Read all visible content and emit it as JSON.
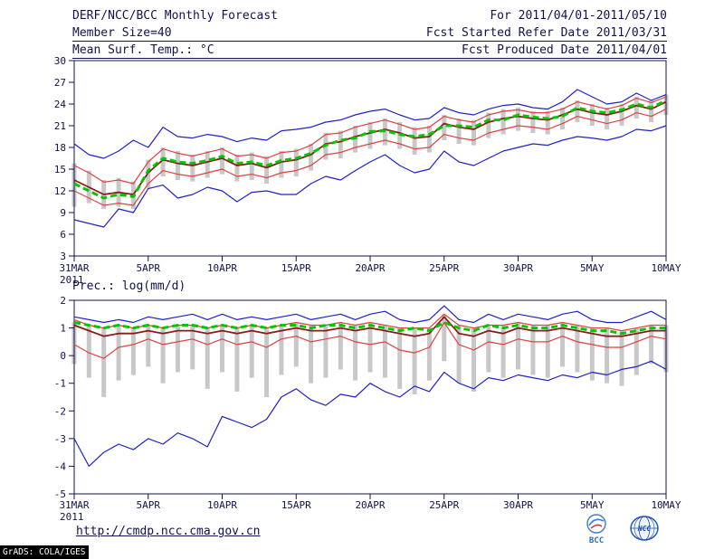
{
  "header": {
    "title": "DERF/NCC/BCC Monthly Forecast",
    "member_size": "Member Size=40",
    "panel1_title": "Mean Surf. Temp.: °C",
    "for_range": "For 2011/04/01-2011/05/10",
    "fcst_started": "Fcst Started Refer Date 2011/03/31",
    "fcst_produced": "Fcst Produced Date 2011/04/01"
  },
  "footer": {
    "url": "http://cmdp.ncc.cma.gov.cn",
    "grads_credit": "GrADS: COLA/IGES",
    "logos": [
      {
        "name": "bcc-logo",
        "label": "BCC"
      },
      {
        "name": "ncc-logo",
        "label": "NCC"
      }
    ]
  },
  "colors": {
    "text": "#11114f",
    "bar": "#c8c8c8",
    "max_min_line": "#2020cc",
    "spread_line": "#e04040",
    "mean_line": "#8b1a1a",
    "median_line": "#00c800",
    "background": "#ffffff"
  },
  "chart_data": [
    {
      "id": "temperature",
      "type": "line",
      "title": "Mean Surf. Temp.: °C",
      "xlabel": "",
      "ylabel": "°C",
      "ylim": [
        3,
        30
      ],
      "yticks": [
        30,
        27,
        24,
        21,
        18,
        15,
        12,
        9,
        6,
        3
      ],
      "grid": false,
      "legend": "none",
      "n_days": 41,
      "x_year_label": "2011",
      "xtick_labels": [
        "31MAR",
        "5APR",
        "10APR",
        "15APR",
        "20APR",
        "25APR",
        "30APR",
        "5MAY",
        "10MAY"
      ],
      "xtick_index": [
        0,
        5,
        10,
        15,
        20,
        25,
        30,
        35,
        40
      ],
      "bars": {
        "name": "temp-ensemble-spread-bars",
        "color": "#c8c8c8",
        "high": [
          15.8,
          14.8,
          13.5,
          13.8,
          13.3,
          16.3,
          18.0,
          17.5,
          17.0,
          17.5,
          18.0,
          17.0,
          17.3,
          16.8,
          17.5,
          17.8,
          18.5,
          20.0,
          20.3,
          21.0,
          21.5,
          22.0,
          21.5,
          20.8,
          21.0,
          22.5,
          22.0,
          21.8,
          22.8,
          23.3,
          23.5,
          23.0,
          23.0,
          23.5,
          24.5,
          24.0,
          23.5,
          24.0,
          25.0,
          24.5,
          25.3
        ],
        "low": [
          9.8,
          10.3,
          9.5,
          9.8,
          9.5,
          12.3,
          14.0,
          13.5,
          13.3,
          13.8,
          14.3,
          13.3,
          13.5,
          13.0,
          13.8,
          14.0,
          14.8,
          16.3,
          16.5,
          17.3,
          17.8,
          18.3,
          17.8,
          17.0,
          17.3,
          19.0,
          18.5,
          18.3,
          19.3,
          19.8,
          20.3,
          20.0,
          19.8,
          20.5,
          21.5,
          21.0,
          20.5,
          21.0,
          22.0,
          21.5,
          22.5
        ]
      },
      "series": [
        {
          "name": "ensemble-max",
          "color": "#2020cc",
          "width": 1.2,
          "values": [
            18.5,
            17.0,
            16.5,
            17.5,
            19.0,
            18.0,
            20.8,
            19.5,
            19.3,
            19.8,
            19.5,
            18.8,
            19.3,
            19.0,
            20.3,
            20.5,
            20.8,
            21.5,
            21.8,
            22.5,
            23.0,
            23.3,
            22.5,
            21.8,
            22.0,
            23.5,
            22.8,
            22.5,
            23.3,
            23.8,
            24.0,
            23.5,
            23.3,
            24.3,
            26.0,
            25.0,
            24.0,
            24.3,
            25.5,
            24.5,
            25.3
          ]
        },
        {
          "name": "ensemble-min",
          "color": "#2020cc",
          "width": 1.2,
          "values": [
            8.0,
            7.5,
            7.0,
            9.5,
            9.0,
            12.3,
            12.8,
            11.0,
            11.5,
            12.5,
            12.0,
            10.5,
            11.8,
            12.0,
            11.5,
            11.5,
            13.0,
            14.0,
            13.5,
            14.8,
            16.0,
            17.0,
            15.5,
            14.5,
            15.0,
            17.5,
            16.0,
            15.5,
            16.5,
            17.5,
            18.0,
            18.5,
            18.3,
            19.0,
            19.5,
            19.3,
            19.0,
            19.5,
            20.5,
            20.3,
            21.0
          ]
        },
        {
          "name": "spread-upper",
          "color": "#e04040",
          "width": 1.2,
          "values": [
            15.5,
            14.5,
            13.2,
            13.5,
            13.0,
            16.0,
            17.8,
            17.2,
            16.8,
            17.3,
            17.8,
            16.8,
            17.0,
            16.5,
            17.3,
            17.5,
            18.3,
            19.8,
            20.0,
            20.8,
            21.3,
            21.8,
            21.2,
            20.5,
            20.8,
            22.3,
            21.8,
            21.5,
            22.5,
            23.0,
            23.2,
            22.8,
            22.8,
            23.3,
            24.3,
            23.8,
            23.3,
            23.8,
            24.8,
            24.2,
            25.0
          ]
        },
        {
          "name": "spread-lower",
          "color": "#e04040",
          "width": 1.2,
          "values": [
            12.0,
            11.0,
            10.0,
            10.3,
            10.0,
            13.0,
            14.8,
            14.3,
            14.0,
            14.5,
            15.0,
            14.0,
            14.3,
            13.8,
            14.5,
            14.8,
            15.5,
            17.0,
            17.3,
            18.0,
            18.5,
            19.0,
            18.5,
            17.8,
            18.0,
            19.8,
            19.3,
            19.0,
            20.0,
            20.5,
            21.0,
            20.8,
            20.5,
            21.3,
            22.3,
            21.8,
            21.3,
            21.8,
            22.8,
            22.3,
            23.3
          ]
        },
        {
          "name": "ensemble-mean",
          "color": "#8b1a1a",
          "width": 1.8,
          "values": [
            13.5,
            12.5,
            11.5,
            11.8,
            11.5,
            14.5,
            16.3,
            15.8,
            15.5,
            16.0,
            16.5,
            15.5,
            15.8,
            15.2,
            16.0,
            16.3,
            17.0,
            18.5,
            18.8,
            19.5,
            20.0,
            20.5,
            20.0,
            19.3,
            19.5,
            21.3,
            20.8,
            20.5,
            21.5,
            22.0,
            22.3,
            22.0,
            21.8,
            22.5,
            23.3,
            22.8,
            22.5,
            23.0,
            23.8,
            23.3,
            24.3
          ]
        },
        {
          "name": "ensemble-median",
          "color": "#00c800",
          "width": 3,
          "dash": "7 4",
          "values": [
            13.0,
            12.0,
            11.0,
            11.5,
            11.2,
            14.8,
            16.5,
            16.0,
            15.8,
            16.2,
            16.8,
            15.8,
            16.0,
            15.5,
            16.2,
            16.5,
            17.2,
            18.3,
            19.0,
            19.3,
            20.2,
            20.3,
            19.8,
            19.5,
            19.8,
            21.0,
            21.0,
            20.8,
            21.8,
            21.8,
            22.5,
            22.2,
            22.0,
            22.3,
            23.5,
            23.0,
            22.8,
            23.2,
            24.0,
            23.5,
            24.5
          ]
        }
      ]
    },
    {
      "id": "precipitation",
      "type": "line",
      "title": "Prec.: log(mm/d)",
      "xlabel": "",
      "ylabel": "log(mm/d)",
      "ylim": [
        -5,
        2
      ],
      "yticks": [
        2,
        1,
        0,
        -1,
        -2,
        -3,
        -4,
        -5
      ],
      "grid": false,
      "legend": "none",
      "n_days": 41,
      "x_year_label": "2011",
      "xtick_labels": [
        "31MAR",
        "5APR",
        "10APR",
        "15APR",
        "20APR",
        "25APR",
        "30APR",
        "5MAY",
        "10MAY"
      ],
      "xtick_index": [
        0,
        5,
        10,
        15,
        20,
        25,
        30,
        35,
        40
      ],
      "bars": {
        "name": "prec-ensemble-spread-bars",
        "color": "#c8c8c8",
        "high": [
          1.2,
          1.1,
          1.0,
          1.1,
          1.0,
          1.1,
          1.0,
          1.1,
          1.1,
          1.0,
          1.1,
          1.0,
          1.1,
          1.0,
          1.1,
          1.2,
          1.1,
          1.1,
          1.2,
          1.1,
          1.2,
          1.1,
          1.0,
          1.0,
          1.0,
          1.5,
          1.1,
          1.0,
          1.1,
          1.1,
          1.2,
          1.1,
          1.1,
          1.2,
          1.1,
          1.0,
          1.0,
          0.9,
          1.0,
          1.1,
          1.1
        ],
        "low": [
          -0.3,
          -0.8,
          -1.5,
          -0.9,
          -0.7,
          -0.4,
          -1.0,
          -0.6,
          -0.5,
          -1.2,
          -0.6,
          -1.3,
          -0.8,
          -1.5,
          -0.7,
          -0.4,
          -1.0,
          -0.8,
          -0.5,
          -0.9,
          -0.6,
          -0.8,
          -1.2,
          -1.4,
          -0.9,
          -0.2,
          -1.0,
          -1.3,
          -0.6,
          -0.8,
          -0.5,
          -0.7,
          -0.8,
          -0.4,
          -0.6,
          -0.9,
          -1.0,
          -1.1,
          -0.7,
          -0.3,
          -0.6
        ]
      },
      "series": [
        {
          "name": "ensemble-max",
          "color": "#2020cc",
          "width": 1.2,
          "values": [
            1.4,
            1.3,
            1.2,
            1.3,
            1.2,
            1.4,
            1.3,
            1.4,
            1.5,
            1.3,
            1.5,
            1.3,
            1.4,
            1.3,
            1.4,
            1.5,
            1.3,
            1.4,
            1.5,
            1.3,
            1.5,
            1.6,
            1.3,
            1.2,
            1.3,
            1.8,
            1.3,
            1.2,
            1.5,
            1.3,
            1.5,
            1.4,
            1.3,
            1.5,
            1.6,
            1.3,
            1.2,
            1.2,
            1.4,
            1.6,
            1.3
          ]
        },
        {
          "name": "ensemble-min",
          "color": "#2020cc",
          "width": 1.2,
          "values": [
            -3.0,
            -4.0,
            -3.5,
            -3.2,
            -3.4,
            -3.0,
            -3.2,
            -2.8,
            -3.0,
            -3.3,
            -2.2,
            -2.4,
            -2.6,
            -2.3,
            -1.5,
            -1.2,
            -1.6,
            -1.8,
            -1.4,
            -1.5,
            -1.0,
            -1.3,
            -1.5,
            -1.1,
            -1.3,
            -0.6,
            -1.0,
            -1.2,
            -0.8,
            -0.9,
            -0.7,
            -0.8,
            -0.9,
            -0.7,
            -0.8,
            -0.6,
            -0.7,
            -0.5,
            -0.4,
            -0.2,
            -0.5
          ]
        },
        {
          "name": "spread-upper",
          "color": "#e04040",
          "width": 1.2,
          "values": [
            1.3,
            1.1,
            1.0,
            1.1,
            1.0,
            1.1,
            1.0,
            1.1,
            1.1,
            1.0,
            1.1,
            1.0,
            1.1,
            1.0,
            1.1,
            1.2,
            1.1,
            1.1,
            1.2,
            1.1,
            1.2,
            1.1,
            1.0,
            1.0,
            1.0,
            1.5,
            1.1,
            1.0,
            1.1,
            1.1,
            1.2,
            1.1,
            1.1,
            1.2,
            1.1,
            1.0,
            1.0,
            0.9,
            1.0,
            1.1,
            1.1
          ]
        },
        {
          "name": "spread-lower",
          "color": "#e04040",
          "width": 1.2,
          "values": [
            0.4,
            0.1,
            -0.1,
            0.3,
            0.4,
            0.6,
            0.4,
            0.5,
            0.6,
            0.4,
            0.6,
            0.4,
            0.5,
            0.3,
            0.6,
            0.7,
            0.5,
            0.6,
            0.7,
            0.5,
            0.4,
            0.5,
            0.2,
            0.1,
            0.3,
            1.2,
            0.4,
            0.2,
            0.5,
            0.4,
            0.6,
            0.5,
            0.5,
            0.7,
            0.5,
            0.4,
            0.3,
            0.3,
            0.5,
            0.7,
            0.6
          ]
        },
        {
          "name": "ensemble-mean",
          "color": "#8b1a1a",
          "width": 1.8,
          "values": [
            1.1,
            0.9,
            0.7,
            0.8,
            0.8,
            0.9,
            0.8,
            0.9,
            0.9,
            0.8,
            0.9,
            0.8,
            0.9,
            0.8,
            0.9,
            1.0,
            0.9,
            0.9,
            1.0,
            0.9,
            1.0,
            0.9,
            0.8,
            0.7,
            0.8,
            1.4,
            0.8,
            0.7,
            0.9,
            0.8,
            1.0,
            0.9,
            0.9,
            1.0,
            0.9,
            0.8,
            0.7,
            0.7,
            0.8,
            0.9,
            0.9
          ]
        },
        {
          "name": "ensemble-median",
          "color": "#00c800",
          "width": 3,
          "dash": "7 4",
          "values": [
            1.2,
            1.1,
            1.0,
            1.1,
            1.0,
            1.1,
            1.0,
            1.1,
            1.1,
            1.0,
            1.1,
            1.0,
            1.1,
            1.0,
            1.1,
            1.1,
            1.0,
            1.1,
            1.1,
            1.0,
            1.1,
            1.0,
            0.9,
            1.0,
            0.9,
            1.2,
            1.0,
            0.9,
            1.1,
            1.0,
            1.1,
            1.0,
            1.0,
            1.1,
            1.0,
            0.9,
            0.9,
            0.8,
            0.9,
            1.0,
            1.0
          ]
        }
      ]
    }
  ]
}
